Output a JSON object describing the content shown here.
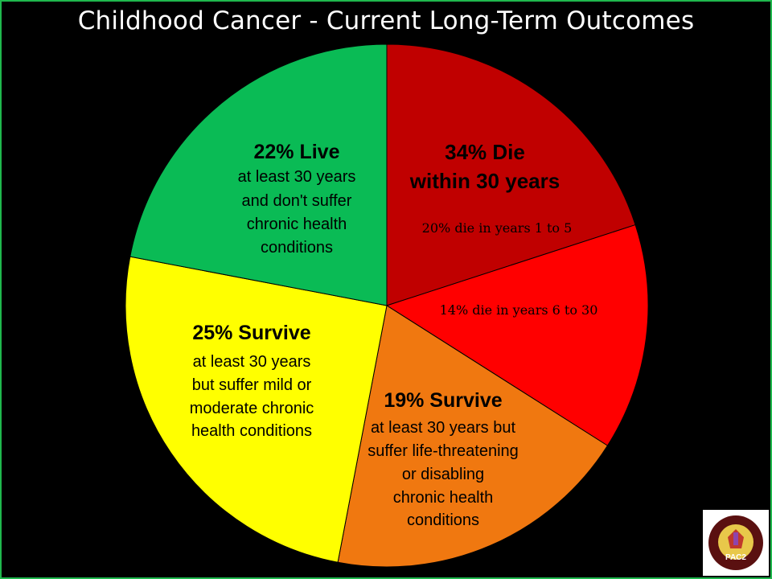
{
  "chart_data": {
    "type": "pie",
    "title": "Childhood Cancer - Current Long-Term Outcomes",
    "slices": [
      {
        "label": "20% die in years 1 to 5",
        "value": 20,
        "color": "#c00000"
      },
      {
        "label": "14% die in years 6 to 30",
        "value": 14,
        "color": "#ff0000"
      },
      {
        "label": "19% Survive",
        "value": 19,
        "color": "#f07810"
      },
      {
        "label": "25% Survive",
        "value": 25,
        "color": "#ffff00"
      },
      {
        "label": "22% Live",
        "value": 22,
        "color": "#0abb55"
      }
    ],
    "annotations": {
      "die": {
        "heading": [
          "34% Die",
          "within 30 years"
        ],
        "sub1": "20% die in years 1 to 5",
        "sub2": "14% die in years 6 to 30"
      },
      "survive_severe": {
        "heading": "19% Survive",
        "lines": [
          "at least 30 years but",
          "suffer life-threatening",
          "or disabling",
          "chronic health",
          "conditions"
        ]
      },
      "survive_mild": {
        "heading": "25% Survive",
        "lines": [
          "at least 30 years",
          "but suffer mild or",
          "moderate chronic",
          "health conditions"
        ]
      },
      "live": {
        "heading": "22% Live",
        "lines": [
          "at least 30 years",
          "and don't suffer",
          "chronic health",
          "conditions"
        ]
      }
    }
  },
  "logo": {
    "arc_text_top": "Parents Against Childhood Cancer",
    "center": "PAC2",
    "arc_text_bottom": "One Voice United Against Childhood Cancer",
    "colors": {
      "ring": "#5a1010",
      "inner": "#e8c84a"
    }
  }
}
